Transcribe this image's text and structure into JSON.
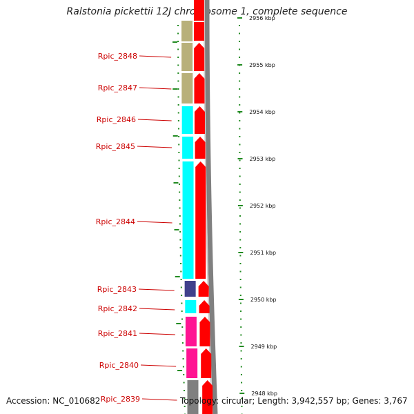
{
  "title": "Ralstonia pickettii 12J chromosome 1, complete sequence",
  "accession_text": "Accession: NC_010682",
  "info_text": "Topology: circular; Length: 3,942,557 bp; Genes: 3,767",
  "colors": {
    "gene_label": "#cc0000",
    "strand_arrow": "#ff0000",
    "ruler_tick": "#228b22",
    "backbone": "#808080",
    "olive": "#b8b07a",
    "cyan": "#00ffff",
    "dark_blue": "#40408c",
    "pink": "#ff1493",
    "gray": "#808080"
  },
  "scale_labels": [
    "2956 kbp",
    "2955 kbp",
    "2954 kbp",
    "2953 kbp",
    "2952 kbp",
    "2951 kbp",
    "2950 kbp",
    "2949 kbp",
    "2948 kbp"
  ],
  "genes": [
    {
      "name": "Rpic_2848",
      "color_key": "olive"
    },
    {
      "name": "Rpic_2847",
      "color_key": "olive"
    },
    {
      "name": "Rpic_2846",
      "color_key": "cyan"
    },
    {
      "name": "Rpic_2845",
      "color_key": "cyan"
    },
    {
      "name": "Rpic_2844",
      "color_key": "cyan"
    },
    {
      "name": "Rpic_2843",
      "color_key": "dark_blue"
    },
    {
      "name": "Rpic_2842",
      "color_key": "cyan"
    },
    {
      "name": "Rpic_2841",
      "color_key": "pink"
    },
    {
      "name": "Rpic_2840",
      "color_key": "pink"
    },
    {
      "name": "Rpic_2839",
      "color_key": "gray"
    }
  ]
}
